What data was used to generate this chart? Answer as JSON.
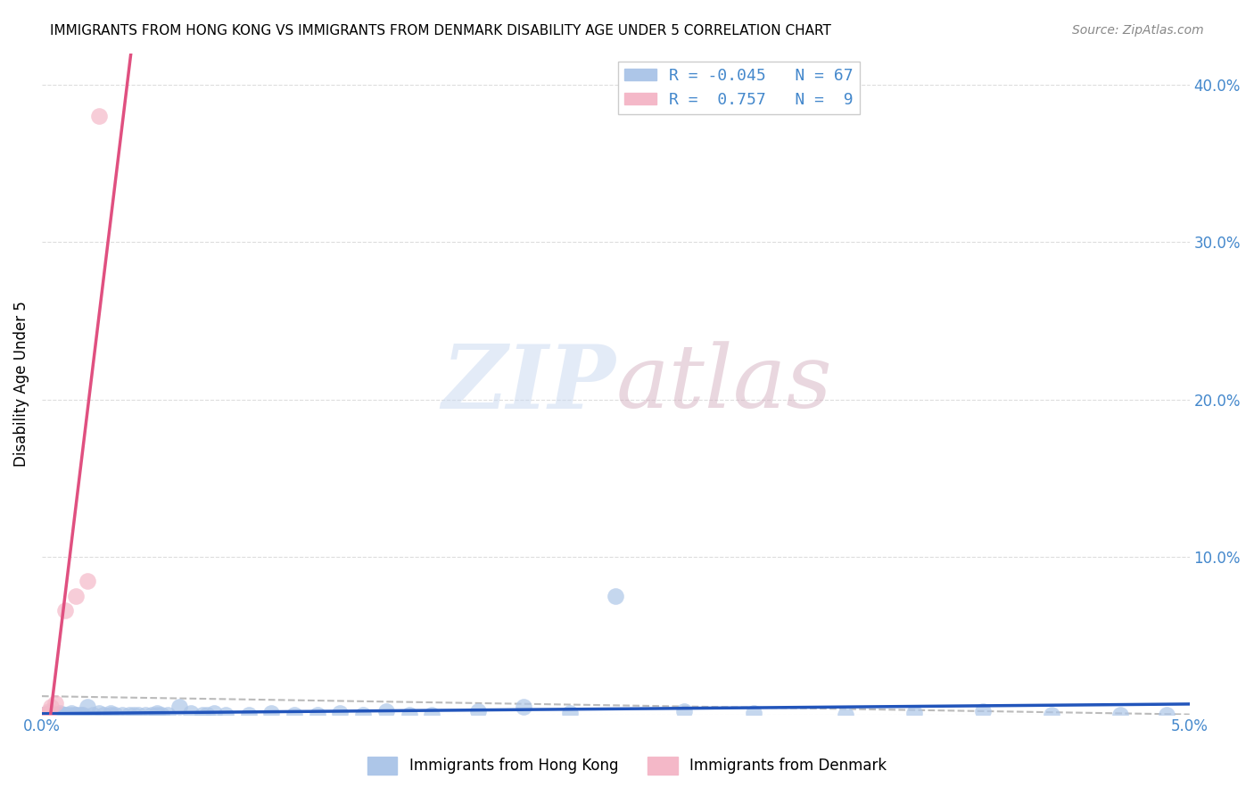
{
  "title": "IMMIGRANTS FROM HONG KONG VS IMMIGRANTS FROM DENMARK DISABILITY AGE UNDER 5 CORRELATION CHART",
  "source": "Source: ZipAtlas.com",
  "xlabel": "",
  "ylabel": "Disability Age Under 5",
  "xlim": [
    0.0,
    0.05
  ],
  "ylim": [
    0.0,
    0.42
  ],
  "yticks": [
    0.0,
    0.1,
    0.2,
    0.3,
    0.4
  ],
  "ytick_labels": [
    "",
    "10.0%",
    "20.0%",
    "30.0%",
    "40.0%"
  ],
  "xticks": [
    0.0,
    0.05
  ],
  "xtick_labels": [
    "0.0%",
    "5.0%"
  ],
  "legend_entries": [
    {
      "label": "R = -0.045   N = 67",
      "color": "#adc6e8"
    },
    {
      "label": "R =  0.757   N =  9",
      "color": "#f4b8c8"
    }
  ],
  "hk_x": [
    0.0,
    0.0001,
    0.0002,
    0.0003,
    0.0003,
    0.0004,
    0.0004,
    0.0005,
    0.0005,
    0.0006,
    0.0007,
    0.0007,
    0.0008,
    0.0009,
    0.001,
    0.001,
    0.0012,
    0.0013,
    0.0014,
    0.0015,
    0.0016,
    0.0017,
    0.0018,
    0.002,
    0.0022,
    0.0025,
    0.0027,
    0.003,
    0.003,
    0.0032,
    0.0035,
    0.0038,
    0.004,
    0.0042,
    0.0045,
    0.0048,
    0.005,
    0.005,
    0.0052,
    0.0055,
    0.006,
    0.0065,
    0.007,
    0.0072,
    0.0075,
    0.008,
    0.009,
    0.01,
    0.011,
    0.012,
    0.013,
    0.014,
    0.015,
    0.016,
    0.017,
    0.019,
    0.021,
    0.023,
    0.025,
    0.028,
    0.031,
    0.035,
    0.038,
    0.041,
    0.044,
    0.047,
    0.049
  ],
  "hk_y": [
    0.0,
    0.0,
    0.0,
    0.0,
    0.001,
    0.0,
    0.0,
    0.0,
    0.0,
    0.0,
    0.0,
    0.0,
    0.001,
    0.0,
    0.0,
    0.0,
    0.0,
    0.001,
    0.0,
    0.0,
    0.0,
    0.0,
    0.0,
    0.005,
    0.0,
    0.001,
    0.0,
    0.0,
    0.001,
    0.0,
    0.0,
    0.0,
    0.0,
    0.0,
    0.0,
    0.0,
    0.001,
    0.0,
    0.0,
    0.0,
    0.005,
    0.001,
    0.0,
    0.0,
    0.001,
    0.0,
    0.0,
    0.001,
    0.0,
    0.0,
    0.001,
    0.0,
    0.002,
    0.0,
    0.0,
    0.002,
    0.005,
    0.001,
    0.075,
    0.002,
    0.001,
    0.0,
    0.001,
    0.002,
    0.0,
    0.0,
    0.0
  ],
  "dk_x": [
    0.0001,
    0.0002,
    0.0003,
    0.0004,
    0.0006,
    0.001,
    0.0015,
    0.002,
    0.0025
  ],
  "dk_y": [
    0.0,
    0.0,
    0.002,
    0.005,
    0.007,
    0.066,
    0.075,
    0.085,
    0.38
  ],
  "hk_color": "#adc6e8",
  "dk_color": "#f4b8c8",
  "hk_line_color": "#2255bb",
  "dk_line_color": "#e05080",
  "dash_line_color": "#bbbbbb",
  "watermark": "ZIPatlas",
  "watermark_color_zip": "#c8d8f0",
  "watermark_color_atlas": "#d4b0c0",
  "background_color": "#ffffff",
  "grid_color": "#dddddd"
}
